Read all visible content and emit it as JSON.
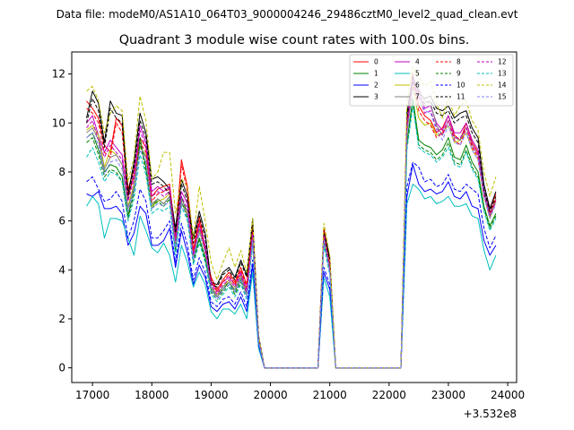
{
  "chart_data": {
    "type": "line",
    "suptitle": "Data file: modeM0/AS1A10_064T03_9000004246_29486cztM0_level2_quad_clean.evt",
    "title": "Quadrant 3 module wise count rates with 100.0s bins.",
    "xlabel": "",
    "ylabel": "",
    "x_offset_label": "+3.532e8",
    "xlim": [
      16650,
      24150
    ],
    "ylim": [
      -0.6,
      12.9
    ],
    "x_ticks": [
      17000,
      18000,
      19000,
      20000,
      21000,
      22000,
      23000,
      24000
    ],
    "x_tick_labels": [
      "17000",
      "18000",
      "19000",
      "20000",
      "21000",
      "22000",
      "23000",
      "24000"
    ],
    "y_ticks": [
      0,
      2,
      4,
      6,
      8,
      10,
      12
    ],
    "y_tick_labels": [
      "0",
      "2",
      "4",
      "6",
      "8",
      "10",
      "12"
    ],
    "legend_position": "top-right",
    "x": [
      16900,
      17000,
      17100,
      17200,
      17300,
      17400,
      17500,
      17600,
      17700,
      17800,
      17900,
      18000,
      18100,
      18200,
      18300,
      18400,
      18500,
      18600,
      18700,
      18800,
      18900,
      19000,
      19100,
      19200,
      19300,
      19400,
      19500,
      19600,
      19700,
      19800,
      19900,
      20000,
      20100,
      20200,
      20300,
      20400,
      20500,
      20600,
      20700,
      20800,
      20900,
      21000,
      21100,
      21200,
      21300,
      21400,
      21500,
      21600,
      21700,
      21800,
      21900,
      22000,
      22100,
      22200,
      22300,
      22400,
      22500,
      22600,
      22700,
      22800,
      22900,
      23000,
      23100,
      23200,
      23300,
      23400,
      23500,
      23600,
      23700,
      23800
    ],
    "series": [
      {
        "name": "0",
        "color": "#ff0000",
        "dash": false,
        "values": [
          10.9,
          10.6,
          10.2,
          9.1,
          8.8,
          10.2,
          9.9,
          7.3,
          8.1,
          9.4,
          9.0,
          7.0,
          7.3,
          7.4,
          7.5,
          5.4,
          8.5,
          7.4,
          4.8,
          6.2,
          4.9,
          3.7,
          3.2,
          3.6,
          3.9,
          3.5,
          4.1,
          3.4,
          5.8,
          1.2,
          0,
          0,
          0,
          0,
          0,
          0,
          0,
          0,
          0,
          0,
          5.7,
          4.4,
          0,
          0,
          0,
          0,
          0,
          0,
          0,
          0,
          0,
          0,
          0,
          0,
          10.0,
          12.0,
          10.7,
          10.3,
          10.1,
          9.6,
          9.8,
          10.3,
          9.5,
          9.3,
          10.0,
          9.2,
          8.8,
          7.1,
          6.5,
          7.1
        ]
      },
      {
        "name": "1",
        "color": "#008000",
        "dash": false,
        "values": [
          9.4,
          9.6,
          8.9,
          8.0,
          8.3,
          8.2,
          7.8,
          6.2,
          7.3,
          9.4,
          8.2,
          6.6,
          6.9,
          6.7,
          7.0,
          4.8,
          7.0,
          6.2,
          4.4,
          5.3,
          4.5,
          3.2,
          2.9,
          3.2,
          3.5,
          3.1,
          3.6,
          3.0,
          5.2,
          1.1,
          0,
          0,
          0,
          0,
          0,
          0,
          0,
          0,
          0,
          0,
          5.2,
          4.0,
          0,
          0,
          0,
          0,
          0,
          0,
          0,
          0,
          0,
          0,
          0,
          0,
          9.2,
          11.0,
          9.3,
          9.1,
          9.0,
          8.7,
          8.9,
          9.4,
          8.6,
          8.5,
          9.1,
          8.4,
          8.0,
          6.6,
          5.8,
          6.3
        ]
      },
      {
        "name": "2",
        "color": "#0000ff",
        "dash": false,
        "values": [
          7.1,
          7.0,
          7.2,
          6.5,
          6.5,
          6.6,
          6.3,
          5.0,
          5.5,
          6.6,
          6.3,
          5.0,
          5.0,
          5.2,
          5.7,
          4.1,
          5.6,
          4.7,
          3.4,
          4.2,
          3.7,
          2.5,
          2.3,
          2.6,
          2.7,
          2.4,
          2.9,
          2.3,
          4.2,
          0.9,
          0,
          0,
          0,
          0,
          0,
          0,
          0,
          0,
          0,
          0,
          3.9,
          3.2,
          0,
          0,
          0,
          0,
          0,
          0,
          0,
          0,
          0,
          0,
          0,
          0,
          7.0,
          8.3,
          7.5,
          7.2,
          7.3,
          7.1,
          7.2,
          7.6,
          7.0,
          6.9,
          7.2,
          6.6,
          6.5,
          5.2,
          4.6,
          5.0
        ]
      },
      {
        "name": "3",
        "color": "#000000",
        "dash": false,
        "values": [
          10.2,
          11.3,
          10.8,
          9.2,
          10.9,
          10.4,
          10.3,
          7.1,
          8.4,
          10.4,
          9.6,
          7.7,
          7.8,
          7.6,
          7.3,
          5.7,
          7.7,
          7.0,
          5.3,
          6.4,
          5.5,
          3.5,
          3.4,
          3.9,
          4.1,
          3.7,
          4.4,
          3.8,
          6.1,
          1.3,
          0,
          0,
          0,
          0,
          0,
          0,
          0,
          0,
          0,
          0,
          5.6,
          4.5,
          0,
          0,
          0,
          0,
          0,
          0,
          0,
          0,
          0,
          0,
          0,
          0,
          10.4,
          11.9,
          11.2,
          11.0,
          11.1,
          10.6,
          10.5,
          10.7,
          10.2,
          10.4,
          10.5,
          9.8,
          9.4,
          7.5,
          6.5,
          7.2
        ]
      },
      {
        "name": "4",
        "color": "#bf00bf",
        "dash": false,
        "values": [
          10.0,
          10.3,
          9.5,
          8.8,
          9.3,
          9.0,
          8.7,
          7.0,
          7.9,
          9.9,
          9.2,
          7.2,
          7.4,
          7.2,
          7.4,
          5.3,
          7.2,
          6.7,
          4.7,
          5.9,
          5.0,
          3.5,
          3.1,
          3.5,
          3.7,
          3.4,
          3.9,
          3.2,
          5.6,
          1.2,
          0,
          0,
          0,
          0,
          0,
          0,
          0,
          0,
          0,
          0,
          5.5,
          4.2,
          0,
          0,
          0,
          0,
          0,
          0,
          0,
          0,
          0,
          0,
          0,
          0,
          10.1,
          11.8,
          11.3,
          10.6,
          10.7,
          10.0,
          9.7,
          10.3,
          9.6,
          9.6,
          10.0,
          9.3,
          8.9,
          7.3,
          6.3,
          6.9
        ]
      },
      {
        "name": "5",
        "color": "#00bfbf",
        "dash": false,
        "values": [
          6.6,
          7.0,
          6.7,
          5.3,
          6.1,
          6.1,
          6.0,
          5.3,
          4.6,
          6.2,
          5.6,
          4.9,
          4.7,
          5.1,
          4.6,
          3.5,
          5.0,
          4.3,
          3.3,
          3.9,
          3.4,
          2.3,
          2.0,
          2.4,
          2.4,
          2.2,
          2.6,
          2.0,
          3.9,
          0.8,
          0,
          0,
          0,
          0,
          0,
          0,
          0,
          0,
          0,
          0,
          3.7,
          2.9,
          0,
          0,
          0,
          0,
          0,
          0,
          0,
          0,
          0,
          0,
          0,
          0,
          6.7,
          7.5,
          7.3,
          6.9,
          7.0,
          6.7,
          6.8,
          7.0,
          6.6,
          6.6,
          6.7,
          6.2,
          6.1,
          4.8,
          4.0,
          4.6
        ]
      },
      {
        "name": "6",
        "color": "#bfbf00",
        "dash": false,
        "values": [
          9.7,
          9.9,
          9.5,
          8.2,
          8.9,
          8.7,
          8.3,
          6.6,
          7.5,
          9.0,
          8.7,
          6.6,
          6.8,
          6.9,
          7.1,
          5.1,
          6.7,
          6.3,
          4.6,
          5.6,
          4.8,
          3.3,
          3.0,
          3.3,
          3.6,
          3.3,
          3.8,
          3.1,
          5.3,
          1.1,
          0,
          0,
          0,
          0,
          0,
          0,
          0,
          0,
          0,
          0,
          5.4,
          4.1,
          0,
          0,
          0,
          0,
          0,
          0,
          0,
          0,
          0,
          0,
          0,
          0,
          9.6,
          11.5,
          10.2,
          9.9,
          10.0,
          9.5,
          9.6,
          9.9,
          9.2,
          9.3,
          9.6,
          8.9,
          8.5,
          7.0,
          6.1,
          6.8
        ]
      },
      {
        "name": "7",
        "color": "#808080",
        "dash": false,
        "values": [
          9.6,
          9.8,
          9.3,
          8.1,
          8.6,
          8.7,
          8.3,
          6.5,
          7.4,
          9.1,
          8.6,
          6.7,
          6.9,
          6.7,
          7.0,
          5.0,
          6.9,
          6.4,
          4.5,
          5.7,
          4.8,
          3.3,
          2.9,
          3.3,
          3.5,
          3.2,
          3.7,
          3.0,
          5.4,
          1.1,
          0,
          0,
          0,
          0,
          0,
          0,
          0,
          0,
          0,
          0,
          5.3,
          4.0,
          0,
          0,
          0,
          0,
          0,
          0,
          0,
          0,
          0,
          0,
          0,
          0,
          9.7,
          11.6,
          11.4,
          10.9,
          10.8,
          9.9,
          9.5,
          10.1,
          9.4,
          9.3,
          9.8,
          9.1,
          8.7,
          7.2,
          6.2,
          6.9
        ]
      },
      {
        "name": "8",
        "color": "#ff0000",
        "dash": true,
        "values": [
          10.6,
          10.4,
          10.0,
          8.8,
          8.6,
          10.0,
          9.6,
          7.0,
          7.8,
          9.2,
          8.8,
          6.8,
          7.1,
          7.2,
          7.3,
          5.2,
          8.3,
          7.2,
          4.7,
          6.0,
          4.7,
          3.6,
          3.1,
          3.5,
          3.8,
          3.4,
          4.0,
          3.3,
          5.7,
          1.2,
          0,
          0,
          0,
          0,
          0,
          0,
          0,
          0,
          0,
          0,
          5.6,
          4.3,
          0,
          0,
          0,
          0,
          0,
          0,
          0,
          0,
          0,
          0,
          0,
          0,
          9.8,
          11.7,
          10.5,
          10.1,
          9.9,
          9.4,
          9.6,
          10.1,
          9.3,
          9.1,
          9.8,
          9.0,
          8.6,
          7.0,
          6.3,
          6.9
        ]
      },
      {
        "name": "9",
        "color": "#008000",
        "dash": true,
        "values": [
          9.2,
          9.4,
          8.7,
          7.8,
          8.1,
          8.0,
          7.6,
          6.1,
          7.1,
          9.2,
          8.0,
          6.5,
          6.8,
          6.6,
          6.9,
          4.7,
          6.8,
          6.1,
          4.3,
          5.2,
          4.4,
          3.1,
          2.8,
          3.1,
          3.4,
          3.0,
          3.5,
          2.9,
          5.1,
          1.1,
          0,
          0,
          0,
          0,
          0,
          0,
          0,
          0,
          0,
          0,
          5.1,
          3.9,
          0,
          0,
          0,
          0,
          0,
          0,
          0,
          0,
          0,
          0,
          0,
          0,
          9.0,
          10.8,
          9.1,
          8.9,
          8.8,
          8.5,
          8.7,
          9.2,
          8.4,
          8.3,
          8.9,
          8.2,
          7.8,
          6.5,
          5.7,
          6.2
        ]
      },
      {
        "name": "10",
        "color": "#0000ff",
        "dash": true,
        "values": [
          7.6,
          7.8,
          7.3,
          6.8,
          6.9,
          7.2,
          6.8,
          5.3,
          6.0,
          7.3,
          6.8,
          5.3,
          5.3,
          5.6,
          6.0,
          4.3,
          5.9,
          5.0,
          3.6,
          4.5,
          3.9,
          2.7,
          2.5,
          2.8,
          2.9,
          2.6,
          3.1,
          2.5,
          4.4,
          0.9,
          0,
          0,
          0,
          0,
          0,
          0,
          0,
          0,
          0,
          0,
          4.1,
          3.4,
          0,
          0,
          0,
          0,
          0,
          0,
          0,
          0,
          0,
          0,
          0,
          0,
          7.4,
          8.4,
          8.2,
          7.6,
          7.7,
          7.4,
          7.5,
          7.9,
          7.3,
          7.2,
          7.5,
          7.3,
          7.1,
          5.7,
          4.9,
          5.4
        ]
      },
      {
        "name": "11",
        "color": "#000000",
        "dash": true,
        "values": [
          10.0,
          11.0,
          10.5,
          9.0,
          10.6,
          10.2,
          10.0,
          6.9,
          8.2,
          10.1,
          9.4,
          7.5,
          7.6,
          7.4,
          7.1,
          5.5,
          7.5,
          6.8,
          5.1,
          6.2,
          5.3,
          3.4,
          3.3,
          3.8,
          4.0,
          3.6,
          4.3,
          3.7,
          5.9,
          1.3,
          0,
          0,
          0,
          0,
          0,
          0,
          0,
          0,
          0,
          0,
          5.5,
          4.4,
          0,
          0,
          0,
          0,
          0,
          0,
          0,
          0,
          0,
          0,
          0,
          0,
          10.2,
          11.7,
          11.0,
          10.8,
          10.9,
          10.4,
          10.3,
          10.5,
          10.0,
          10.2,
          10.3,
          9.6,
          9.2,
          7.3,
          6.4,
          7.0
        ]
      },
      {
        "name": "12",
        "color": "#bf00bf",
        "dash": true,
        "values": [
          9.8,
          10.1,
          9.3,
          8.6,
          9.1,
          8.8,
          8.5,
          6.8,
          7.7,
          9.7,
          9.0,
          7.0,
          7.2,
          7.0,
          7.2,
          5.2,
          7.0,
          6.5,
          4.6,
          5.8,
          4.9,
          3.4,
          3.0,
          3.4,
          3.6,
          3.3,
          3.8,
          3.1,
          5.5,
          1.2,
          0,
          0,
          0,
          0,
          0,
          0,
          0,
          0,
          0,
          0,
          5.4,
          4.1,
          0,
          0,
          0,
          0,
          0,
          0,
          0,
          0,
          0,
          0,
          0,
          0,
          9.9,
          11.6,
          11.1,
          10.4,
          10.5,
          9.8,
          9.5,
          10.1,
          9.4,
          9.4,
          9.8,
          9.1,
          8.7,
          7.1,
          6.2,
          6.8
        ]
      },
      {
        "name": "13",
        "color": "#00bfbf",
        "dash": true,
        "values": [
          8.6,
          9.0,
          8.4,
          7.6,
          8.0,
          7.9,
          7.6,
          6.0,
          6.9,
          8.7,
          7.9,
          6.3,
          6.5,
          6.4,
          6.6,
          4.6,
          6.6,
          6.0,
          4.2,
          5.1,
          4.3,
          3.0,
          2.7,
          3.0,
          3.3,
          2.9,
          3.4,
          2.8,
          5.0,
          1.0,
          0,
          0,
          0,
          0,
          0,
          0,
          0,
          0,
          0,
          0,
          5.0,
          3.8,
          0,
          0,
          0,
          0,
          0,
          0,
          0,
          0,
          0,
          0,
          0,
          0,
          8.9,
          10.7,
          9.0,
          8.8,
          8.7,
          8.4,
          8.6,
          9.0,
          8.3,
          8.2,
          8.8,
          8.1,
          7.7,
          6.4,
          5.6,
          6.1
        ]
      },
      {
        "name": "14",
        "color": "#bfbf00",
        "dash": true,
        "values": [
          11.3,
          11.5,
          10.9,
          9.6,
          10.4,
          10.7,
          10.5,
          7.6,
          8.6,
          11.1,
          10.1,
          7.7,
          8.0,
          8.8,
          8.8,
          6.3,
          7.7,
          7.4,
          5.3,
          7.4,
          6.0,
          4.3,
          3.6,
          4.3,
          4.9,
          4.1,
          4.8,
          3.9,
          6.1,
          1.3,
          0,
          0,
          0,
          0,
          0,
          0,
          0,
          0,
          0,
          0,
          5.9,
          4.6,
          0,
          0,
          0,
          0,
          0,
          0,
          0,
          0,
          0,
          0,
          0,
          0,
          10.8,
          12.3,
          11.9,
          11.5,
          11.7,
          10.8,
          10.2,
          11.0,
          10.3,
          10.7,
          10.9,
          10.1,
          9.7,
          8.0,
          7.0,
          7.8
        ]
      },
      {
        "name": "15",
        "color": "#8080ff",
        "dash": true,
        "values": [
          9.4,
          9.6,
          9.1,
          7.9,
          8.4,
          8.5,
          8.1,
          6.4,
          7.2,
          8.9,
          8.4,
          6.5,
          6.7,
          6.6,
          6.8,
          4.9,
          6.7,
          6.2,
          4.4,
          5.5,
          4.7,
          3.2,
          2.8,
          3.2,
          3.4,
          3.1,
          3.6,
          2.9,
          5.2,
          1.1,
          0,
          0,
          0,
          0,
          0,
          0,
          0,
          0,
          0,
          0,
          5.2,
          3.9,
          0,
          0,
          0,
          0,
          0,
          0,
          0,
          0,
          0,
          0,
          0,
          0,
          9.5,
          11.4,
          11.0,
          10.5,
          10.4,
          9.7,
          9.3,
          9.9,
          9.2,
          9.1,
          9.6,
          8.9,
          8.5,
          7.0,
          6.1,
          6.7
        ]
      }
    ]
  }
}
